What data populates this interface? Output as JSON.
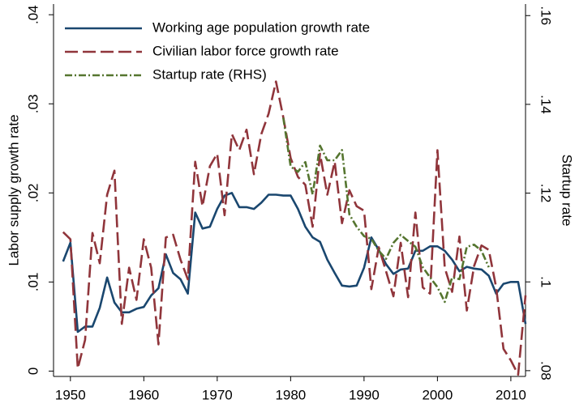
{
  "chart_data": {
    "type": "line",
    "legend": "upper left",
    "y_label": "Labor supply growth rate",
    "y2_label": "Startup rate",
    "xlim": [
      1947.7,
      2012.0
    ],
    "xticks": [
      1950,
      1960,
      1970,
      1980,
      1990,
      2000,
      2010
    ],
    "ylim": [
      -0.0006,
      0.0412
    ],
    "yticks": [
      0,
      {
        "value": 0.01,
        "label": ".01"
      },
      {
        "value": 0.02,
        "label": ".02"
      },
      {
        "value": 0.03,
        "label": ".03"
      },
      {
        "value": 0.04,
        "label": ".04"
      }
    ],
    "y2lim": [
      0.0787,
      0.1626
    ],
    "y2ticks": [
      {
        "value": 0.08,
        "label": ".08"
      },
      {
        "value": 0.1,
        "label": ".1"
      },
      {
        "value": 0.12,
        "label": ".12"
      },
      {
        "value": 0.14,
        "label": ".14"
      },
      {
        "value": 0.16,
        "label": ".16"
      }
    ],
    "x": [
      1949,
      1950,
      1951,
      1952,
      1953,
      1954,
      1955,
      1956,
      1957,
      1958,
      1959,
      1960,
      1961,
      1962,
      1963,
      1964,
      1965,
      1966,
      1967,
      1968,
      1969,
      1970,
      1971,
      1972,
      1973,
      1974,
      1975,
      1976,
      1977,
      1978,
      1979,
      1980,
      1981,
      1982,
      1983,
      1984,
      1985,
      1986,
      1987,
      1988,
      1989,
      1990,
      1991,
      1992,
      1993,
      1994,
      1995,
      1996,
      1997,
      1998,
      1999,
      2000,
      2001,
      2002,
      2003,
      2004,
      2005,
      2006,
      2007,
      2008,
      2009,
      2010,
      2011,
      2012
    ],
    "series": [
      {
        "name": "Working age population growth rate",
        "color": "#1a476f",
        "dash": "solid",
        "values": [
          0.0123,
          0.0144,
          0.0044,
          0.005,
          0.005,
          0.0071,
          0.0105,
          0.0077,
          0.0066,
          0.0066,
          0.007,
          0.0072,
          0.0085,
          0.0093,
          0.0131,
          0.011,
          0.0103,
          0.0087,
          0.0178,
          0.016,
          0.0162,
          0.0182,
          0.0197,
          0.02,
          0.0184,
          0.0184,
          0.0182,
          0.0189,
          0.0198,
          0.0198,
          0.0197,
          0.0197,
          0.0182,
          0.0162,
          0.015,
          0.0145,
          0.0125,
          0.011,
          0.0096,
          0.0095,
          0.0096,
          0.0116,
          0.015,
          0.0136,
          0.012,
          0.0109,
          0.0114,
          0.0115,
          0.0135,
          0.0135,
          0.014,
          0.014,
          0.0135,
          0.0125,
          0.0112,
          0.0117,
          0.0115,
          0.0114,
          0.0107,
          0.0087,
          0.0098,
          0.01,
          0.01,
          0.0053
        ]
      },
      {
        "name": "Civilian labor force growth rate",
        "color": "#90353b",
        "dash": "dashed",
        "values": [
          0.0156,
          0.0148,
          0.0003,
          0.0035,
          0.0155,
          0.0121,
          0.0198,
          0.0225,
          0.0053,
          0.0116,
          0.008,
          0.0148,
          0.0116,
          0.003,
          0.015,
          0.0153,
          0.0125,
          0.0103,
          0.0235,
          0.0185,
          0.023,
          0.0244,
          0.0175,
          0.0266,
          0.0248,
          0.0271,
          0.0221,
          0.0266,
          0.0289,
          0.0325,
          0.0285,
          0.0239,
          0.0218,
          0.0209,
          0.0162,
          0.0244,
          0.0198,
          0.0235,
          0.0166,
          0.0203,
          0.0185,
          0.018,
          0.0092,
          0.0139,
          0.0112,
          0.0084,
          0.0144,
          0.0083,
          0.0178,
          0.0094,
          0.0087,
          0.0248,
          0.0116,
          0.0089,
          0.0151,
          0.0068,
          0.0118,
          0.0141,
          0.0136,
          0.0094,
          0.0025,
          0.0012,
          -0.0004,
          0.0085
        ]
      },
      {
        "name": "Startup rate (RHS)",
        "color": "#55752f",
        "dash": "dashdot",
        "axis": "y2",
        "values": [
          null,
          null,
          null,
          null,
          null,
          null,
          null,
          null,
          null,
          null,
          null,
          null,
          null,
          null,
          null,
          null,
          null,
          null,
          null,
          null,
          null,
          null,
          null,
          null,
          null,
          null,
          null,
          null,
          null,
          null,
          0.137,
          0.126,
          0.1248,
          0.127,
          0.1197,
          0.1307,
          0.1274,
          0.1274,
          0.1297,
          0.1152,
          0.1124,
          0.1103,
          0.1097,
          0.107,
          0.1052,
          0.1088,
          0.1106,
          0.1092,
          0.1079,
          0.1033,
          0.101,
          0.0988,
          0.0955,
          0.101,
          0.1006,
          0.1079,
          0.1084,
          0.107,
          0.1033,
          null,
          null,
          null,
          null,
          null
        ]
      }
    ]
  }
}
